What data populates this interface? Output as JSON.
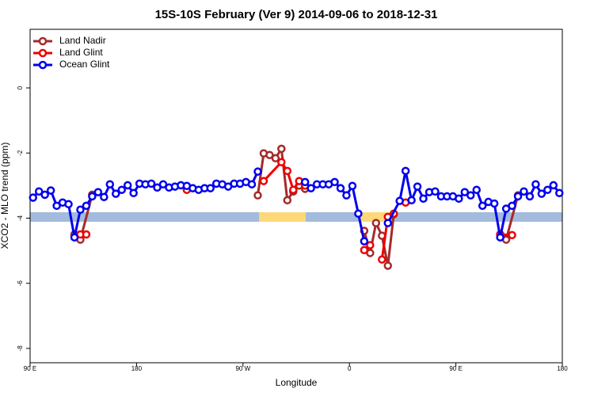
{
  "chart_data": {
    "type": "line",
    "title": "15S-10S February (Ver 9)   2014-09-06 to 2018-12-31",
    "xlabel": "Longitude",
    "ylabel": "XCO2 - MLO trend (ppm)",
    "xlim": [
      90,
      540
    ],
    "ylim": [
      -8.44,
      1.8
    ],
    "xticks": [
      {
        "value": 90,
        "label": "90 E"
      },
      {
        "value": 180,
        "label": "180"
      },
      {
        "value": 270,
        "label": "90 W"
      },
      {
        "value": 360,
        "label": "0"
      },
      {
        "value": 450,
        "label": "90 E"
      },
      {
        "value": 540,
        "label": "180"
      }
    ],
    "yticks": [
      -8,
      -6,
      -4,
      -2,
      0
    ],
    "legend": "top-left",
    "series": [
      {
        "name": "Land Nadir",
        "color": "#a52a2a",
        "x": [
          127.5,
          132.5,
          142.5,
          272.5,
          282.5,
          287.5,
          292.5,
          297.5,
          302.5,
          307.5,
          312.5,
          317.5,
          322.5,
          367.5,
          372.5,
          377.5,
          382.5,
          387.5,
          392.5,
          397.5,
          482.5,
          487.5,
          492.5,
          502.5
        ],
        "values": [
          -4.5,
          -4.66,
          -3.28,
          null,
          -3.3,
          -2.01,
          -2.06,
          -2.16,
          -1.87,
          -3.45,
          -3.18,
          -3.0,
          -3.1,
          null,
          -4.39,
          -5.07,
          -4.15,
          -4.54,
          -5.46,
          -3.88,
          null,
          -4.5,
          -4.66,
          -3.3
        ]
      },
      {
        "name": "Land Glint",
        "color": "#ee0000",
        "x": [
          132.5,
          137.5,
          200,
          222.5,
          260,
          287.5,
          302.5,
          307.5,
          312.5,
          317.5,
          322.5,
          350,
          372.5,
          377.5,
          382.5,
          387.5,
          392.5,
          397.5,
          402.5,
          407.5,
          450,
          487.5,
          497.5
        ],
        "values": [
          -4.5,
          -4.5,
          null,
          -3.13,
          null,
          -2.86,
          -2.28,
          -2.55,
          -3.13,
          -2.86,
          -3.0,
          null,
          -4.98,
          -4.83,
          null,
          -5.27,
          -3.96,
          -3.86,
          null,
          -3.52,
          null,
          -4.5,
          -4.52
        ]
      },
      {
        "name": "Ocean Glint",
        "color": "#0000ee",
        "x": [
          92.5,
          97.5,
          102.5,
          107.5,
          112.5,
          117.5,
          122.5,
          127.5,
          132.5,
          137.5,
          142.5,
          147.5,
          152.5,
          157.5,
          162.5,
          167.5,
          172.5,
          177.5,
          182.5,
          187.5,
          192.5,
          197.5,
          202.5,
          207.5,
          212.5,
          217.5,
          222.5,
          227.5,
          232.5,
          237.5,
          242.5,
          247.5,
          252.5,
          257.5,
          262.5,
          267.5,
          272.5,
          277.5,
          282.5,
          302.5,
          322.5,
          327.5,
          332.5,
          337.5,
          342.5,
          347.5,
          352.5,
          357.5,
          362.5,
          367.5,
          372.5,
          382.5,
          392.5,
          402.5,
          407.5,
          412.5,
          417.5,
          422.5,
          427.5,
          432.5,
          437.5,
          442.5,
          447.5,
          452.5,
          457.5,
          462.5,
          467.5,
          472.5,
          477.5,
          482.5,
          487.5,
          492.5,
          497.5,
          502.5,
          507.5,
          512.5,
          517.5,
          522.5,
          527.5,
          532.5,
          537.5
        ],
        "values": [
          -3.37,
          -3.18,
          -3.28,
          -3.15,
          -3.62,
          -3.52,
          -3.57,
          -4.59,
          -3.74,
          -3.62,
          -3.33,
          -3.2,
          -3.35,
          -2.96,
          -3.25,
          -3.13,
          -2.99,
          -3.23,
          -2.94,
          -2.96,
          -2.94,
          -3.06,
          -2.96,
          -3.06,
          -3.03,
          -2.99,
          -3.01,
          -3.08,
          -3.13,
          -3.08,
          -3.08,
          -2.94,
          -2.96,
          -3.03,
          -2.94,
          -2.94,
          -2.89,
          -2.96,
          -2.57,
          null,
          -2.89,
          -3.08,
          -2.96,
          -2.96,
          -2.96,
          -2.89,
          -3.08,
          -3.3,
          -3.01,
          -3.86,
          -4.71,
          null,
          -4.15,
          -3.47,
          -2.55,
          -3.45,
          -3.03,
          -3.4,
          -3.2,
          -3.18,
          -3.33,
          -3.33,
          -3.33,
          -3.4,
          -3.2,
          -3.3,
          -3.13,
          -3.62,
          -3.5,
          -3.55,
          -4.59,
          -3.71,
          -3.62,
          -3.33,
          -3.18,
          -3.33,
          -2.96,
          -3.25,
          -3.13,
          -2.99,
          -3.23
        ]
      }
    ]
  }
}
